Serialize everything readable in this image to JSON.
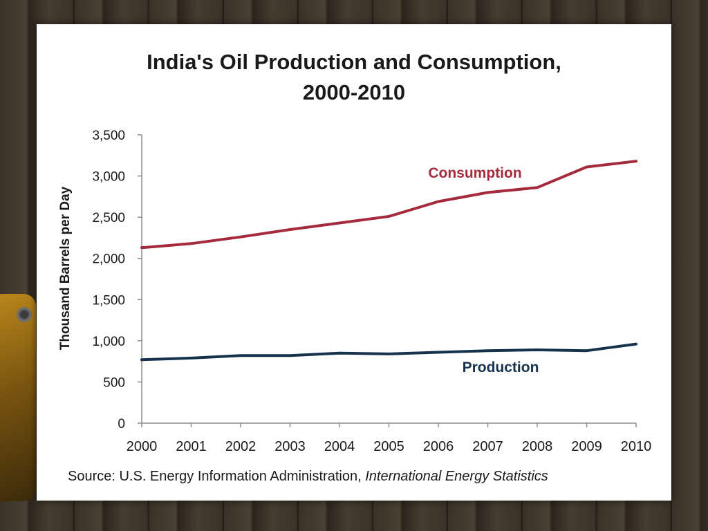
{
  "chart_data": {
    "type": "line",
    "title": "India's Oil Production and Consumption,",
    "subtitle": "2000-2010",
    "xlabel": "",
    "ylabel": "Thousand Barrels per Day",
    "x": [
      2000,
      2001,
      2002,
      2003,
      2004,
      2005,
      2006,
      2007,
      2008,
      2009,
      2010
    ],
    "ylim": [
      0,
      3500
    ],
    "yticks": [
      0,
      500,
      1000,
      1500,
      2000,
      2500,
      3000,
      3500
    ],
    "ytick_labels": [
      "0",
      "500",
      "1,000",
      "1,500",
      "2,000",
      "2,500",
      "3,000",
      "3,500"
    ],
    "xtick_labels": [
      "2000",
      "2001",
      "2002",
      "2003",
      "2004",
      "2005",
      "2006",
      "2007",
      "2008",
      "2009",
      "2010"
    ],
    "grid": false,
    "legend": "inline labels",
    "series": [
      {
        "name": "Consumption",
        "color": "#a52a3c",
        "values": [
          2130,
          2180,
          2260,
          2350,
          2430,
          2510,
          2690,
          2800,
          2860,
          3110,
          3180
        ]
      },
      {
        "name": "Production",
        "color": "#17324d",
        "values": [
          770,
          790,
          820,
          820,
          850,
          840,
          860,
          880,
          890,
          880,
          960
        ]
      }
    ]
  },
  "source": {
    "prefix": "Source: U.S. Energy Information Administration, ",
    "italic": "International Energy Statistics"
  }
}
